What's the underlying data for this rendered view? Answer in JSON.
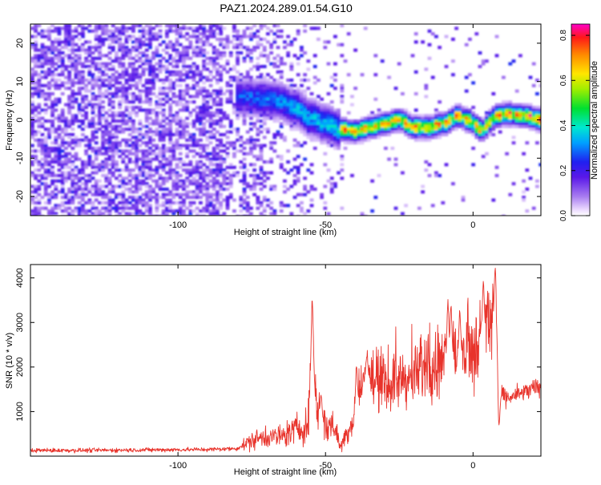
{
  "title": "PAZ1.2024.289.01.54.G10",
  "chart_data": [
    {
      "type": "heatmap",
      "xlabel": "Height of straight line (km)",
      "ylabel": "Frequency (Hz)",
      "xlim": [
        -150,
        23
      ],
      "ylim": [
        -25,
        25
      ],
      "xticks": [
        -100,
        -50,
        0
      ],
      "yticks": [
        -20,
        -10,
        0,
        10,
        20
      ],
      "colorbar": {
        "label": "Normalized spectral amplitude",
        "range": [
          0.0,
          0.85
        ],
        "ticks": [
          "0.0",
          "0.2",
          "0.4",
          "0.6",
          "0.8"
        ],
        "colormap": "rainbow (white-violet-blue-cyan-green-yellow-orange-red-magenta)"
      },
      "ridge": {
        "description": "strong signal ridge following frequency vs height",
        "points": [
          [
            -78,
            6
          ],
          [
            -72,
            5.5
          ],
          [
            -66,
            5
          ],
          [
            -60,
            3
          ],
          [
            -55,
            0.5
          ],
          [
            -50,
            -1
          ],
          [
            -45,
            -2.5
          ],
          [
            -40,
            -3
          ],
          [
            -35,
            -2
          ],
          [
            -30,
            -1
          ],
          [
            -25,
            0
          ],
          [
            -20,
            -2
          ],
          [
            -15,
            -2
          ],
          [
            -10,
            -1
          ],
          [
            -5,
            1
          ],
          [
            -2,
            0
          ],
          [
            3,
            -2.5
          ],
          [
            8,
            1
          ],
          [
            12,
            1.5
          ],
          [
            18,
            1
          ],
          [
            23,
            0
          ]
        ]
      }
    },
    {
      "type": "line",
      "xlabel": "Height of straight line (km)",
      "ylabel": "SNR (10 * v/v)",
      "xlim": [
        -150,
        23
      ],
      "ylim": [
        0,
        4300
      ],
      "xticks": [
        -100,
        -50,
        0
      ],
      "yticks": [
        1000,
        2000,
        3000,
        4000
      ],
      "color": "#e8332b",
      "envelope": {
        "x": [
          -150,
          -130,
          -110,
          -90,
          -80,
          -75,
          -70,
          -65,
          -60,
          -56,
          -54.5,
          -53,
          -50,
          -47,
          -45,
          -42,
          -40,
          -38,
          -36,
          -34,
          -30,
          -25,
          -20,
          -15,
          -10,
          -8,
          -5,
          -2,
          0,
          3,
          5,
          7,
          8,
          9,
          12,
          16,
          20,
          23
        ],
        "y": [
          130,
          130,
          140,
          150,
          170,
          350,
          450,
          430,
          600,
          700,
          2200,
          1100,
          650,
          700,
          200,
          650,
          900,
          1500,
          1800,
          1700,
          1600,
          1700,
          1750,
          2100,
          2000,
          2300,
          2200,
          2400,
          2300,
          2700,
          2900,
          3000,
          3100,
          1400,
          1300,
          1400,
          1500,
          1550
        ]
      },
      "peaks": [
        {
          "x": -54.5,
          "y": 3560
        },
        {
          "x": -51.5,
          "y": 1400
        },
        {
          "x": -39.5,
          "y": 2100
        },
        {
          "x": -36,
          "y": 2300
        },
        {
          "x": -8.5,
          "y": 3580
        },
        {
          "x": -7.5,
          "y": 3450
        },
        {
          "x": -4.5,
          "y": 3300
        },
        {
          "x": 3.0,
          "y": 3100
        },
        {
          "x": 3.5,
          "y": 3950
        },
        {
          "x": 7.5,
          "y": 4300
        },
        {
          "x": 8.8,
          "y": 700
        }
      ]
    }
  ]
}
